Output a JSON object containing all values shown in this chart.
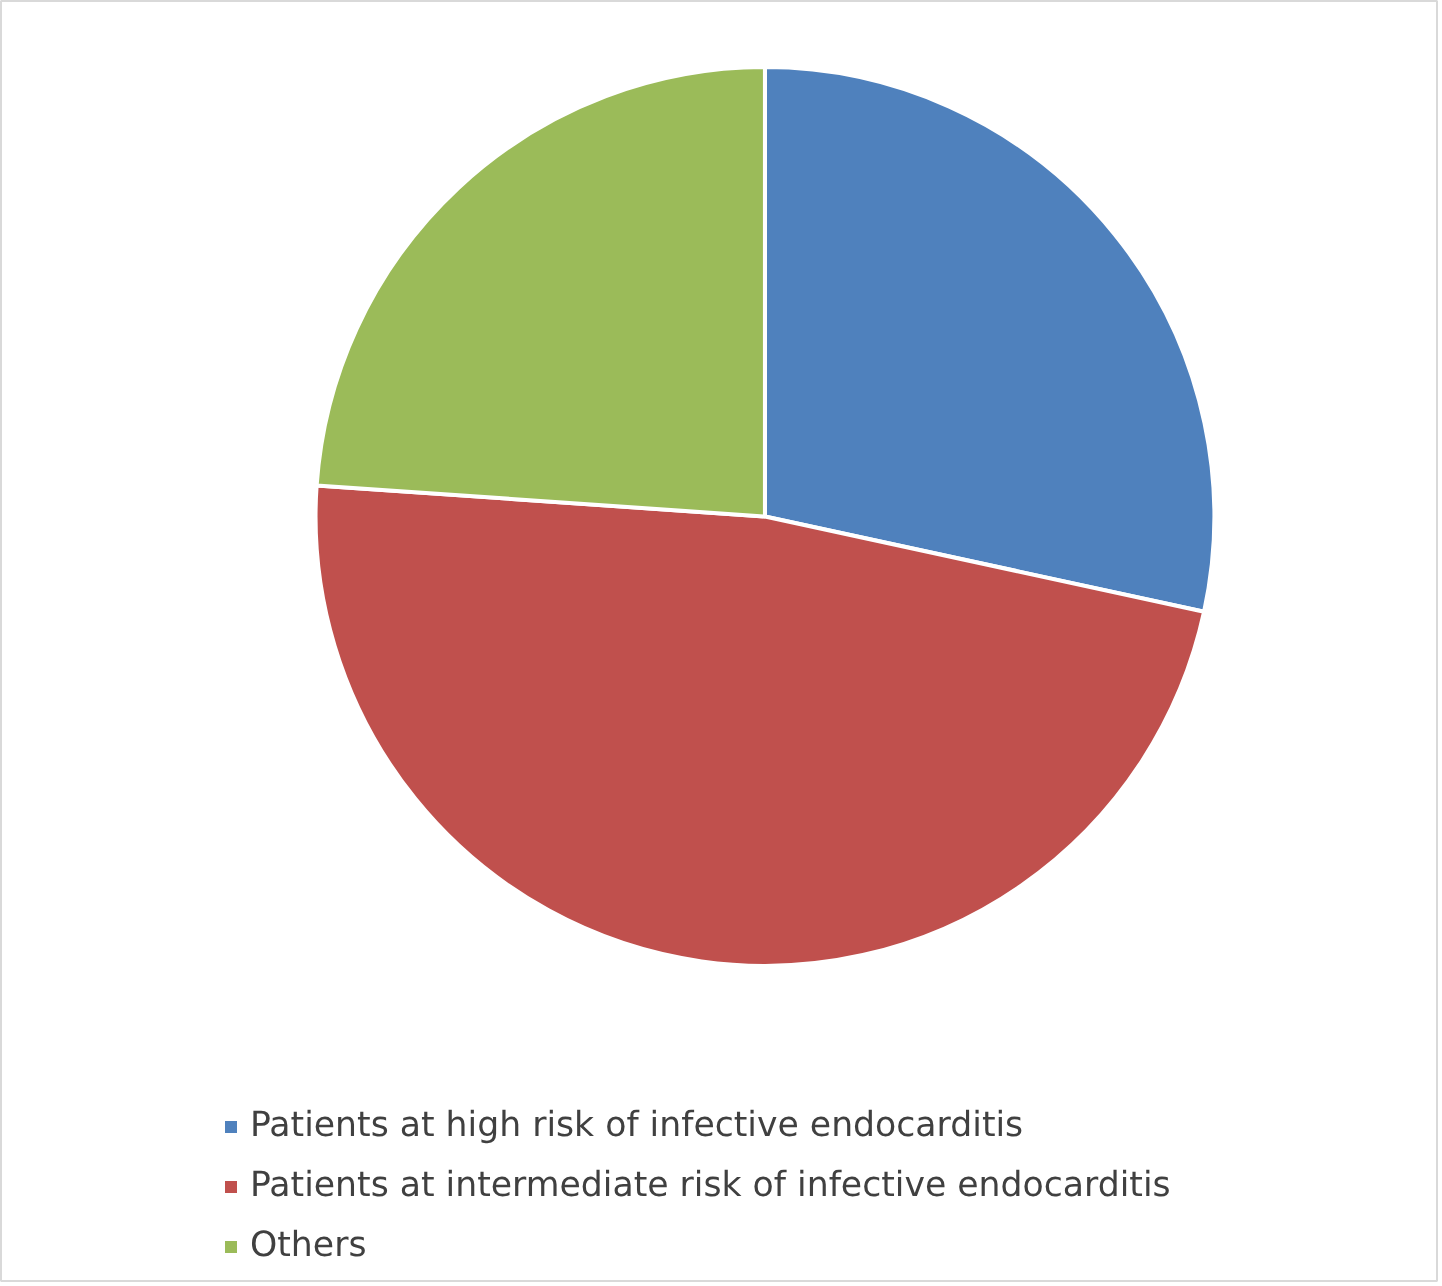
{
  "chart_data": {
    "type": "pie",
    "categories": [
      "Patients at high risk of infective endocarditis",
      "Patients at intermediate risk of infective endocarditis",
      "Others"
    ],
    "values": [
      28.4,
      47.7,
      23.9
    ],
    "colors": [
      "#4f81bd",
      "#c0504d",
      "#9bbb59"
    ],
    "legend": "bottom"
  }
}
